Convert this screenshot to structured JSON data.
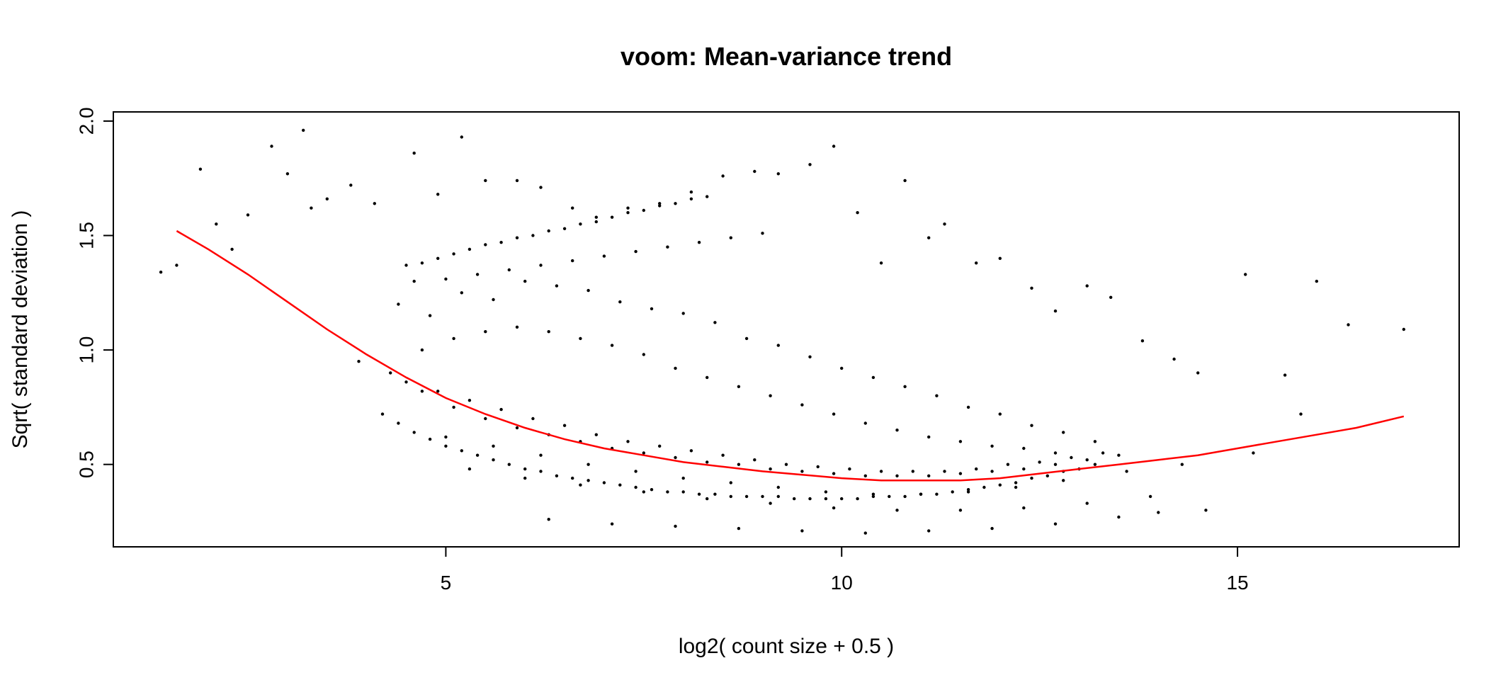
{
  "chart_data": {
    "type": "scatter",
    "title": "voom: Mean-variance trend",
    "xlabel": "log2( count size + 0.5 )",
    "ylabel": "Sqrt( standard deviation )",
    "xlim": [
      0.8,
      17.8
    ],
    "ylim": [
      0.14,
      2.04
    ],
    "x_ticks": [
      5,
      10,
      15
    ],
    "x_tick_labels": [
      "5",
      "10",
      "15"
    ],
    "y_ticks": [
      0.5,
      1.0,
      1.5,
      2.0
    ],
    "y_tick_labels": [
      "0.5",
      "1.0",
      "1.5",
      "2.0"
    ],
    "grid": false,
    "legend": "none",
    "point_color": "#000000",
    "trend_color": "#ff0000",
    "series": [
      {
        "kind": "points",
        "x": [
          1.4,
          1.6,
          1.9,
          2.1,
          2.3,
          2.5,
          2.8,
          3.0,
          3.2,
          3.3,
          3.5,
          3.8,
          4.1,
          4.6,
          4.9,
          5.2,
          5.5,
          5.9,
          6.2,
          6.6,
          6.9,
          7.3,
          7.7,
          8.1,
          8.5,
          8.9,
          9.2,
          9.6,
          9.9,
          10.2,
          10.5,
          10.8,
          11.1,
          11.3,
          11.7,
          12.0,
          12.4,
          12.7,
          13.1,
          13.4,
          13.8,
          14.2,
          14.5,
          15.1,
          15.6,
          16.0,
          16.4,
          17.1,
          4.5,
          4.7,
          4.9,
          5.1,
          5.3,
          5.5,
          5.7,
          5.9,
          6.1,
          6.3,
          6.5,
          6.7,
          6.9,
          7.1,
          7.3,
          7.5,
          7.7,
          7.9,
          8.1,
          8.3,
          4.6,
          5.0,
          5.4,
          5.8,
          6.2,
          6.6,
          7.0,
          7.4,
          7.8,
          8.2,
          8.6,
          9.0,
          4.4,
          4.8,
          5.2,
          5.6,
          6.0,
          6.4,
          6.8,
          7.2,
          7.6,
          8.0,
          8.4,
          8.8,
          9.2,
          9.6,
          10.0,
          10.4,
          10.8,
          11.2,
          11.6,
          12.0,
          12.4,
          12.8,
          13.2,
          4.7,
          5.1,
          5.5,
          5.9,
          6.3,
          6.7,
          7.1,
          7.5,
          7.9,
          8.3,
          8.7,
          9.1,
          9.5,
          9.9,
          10.3,
          10.7,
          11.1,
          11.5,
          11.9,
          12.3,
          12.7,
          4.5,
          4.9,
          5.3,
          5.7,
          6.1,
          6.5,
          6.9,
          7.3,
          7.7,
          8.1,
          8.5,
          8.9,
          9.3,
          9.7,
          10.1,
          10.5,
          10.9,
          11.3,
          11.7,
          12.1,
          12.5,
          12.9,
          13.3,
          5.0,
          5.6,
          6.2,
          6.8,
          7.4,
          8.0,
          8.6,
          9.2,
          9.8,
          10.4,
          11.0,
          11.6,
          12.2,
          12.8,
          13.6,
          14.3,
          15.2,
          5.3,
          6.0,
          6.7,
          7.5,
          8.3,
          9.1,
          9.9,
          10.7,
          11.5,
          12.3,
          13.1,
          13.9,
          4.2,
          4.4,
          4.6,
          4.8,
          5.0,
          5.2,
          5.4,
          5.6,
          5.8,
          6.0,
          6.2,
          6.4,
          6.6,
          6.8,
          7.0,
          7.2,
          7.4,
          7.6,
          7.8,
          8.0,
          8.2,
          8.4,
          8.6,
          8.8,
          9.0,
          9.2,
          9.4,
          9.6,
          9.8,
          10.0,
          10.2,
          10.4,
          10.6,
          10.8,
          11.0,
          11.2,
          11.4,
          11.6,
          11.8,
          12.0,
          12.2,
          12.4,
          12.6,
          12.8,
          13.0,
          13.2,
          3.9,
          4.3,
          4.7,
          5.1,
          5.5,
          5.9,
          6.3,
          6.7,
          7.1,
          7.5,
          7.9,
          8.3,
          8.7,
          9.1,
          9.5,
          9.9,
          10.3,
          10.7,
          11.1,
          11.5,
          11.9,
          12.3,
          12.7,
          13.1,
          13.5,
          6.3,
          7.1,
          7.9,
          8.7,
          9.5,
          10.3,
          11.1,
          11.9,
          12.7,
          13.5,
          14.0,
          14.6,
          15.8
        ],
        "y": [
          1.34,
          1.37,
          1.79,
          1.55,
          1.44,
          1.59,
          1.89,
          1.77,
          1.96,
          1.62,
          1.66,
          1.72,
          1.64,
          1.86,
          1.68,
          1.93,
          1.74,
          1.74,
          1.71,
          1.62,
          1.58,
          1.62,
          1.64,
          1.69,
          1.76,
          1.78,
          1.77,
          1.81,
          1.89,
          1.6,
          1.38,
          1.74,
          1.49,
          1.55,
          1.38,
          1.4,
          1.27,
          1.17,
          1.28,
          1.23,
          1.04,
          0.96,
          0.9,
          1.33,
          0.89,
          1.3,
          1.11,
          1.09,
          1.37,
          1.38,
          1.4,
          1.42,
          1.44,
          1.46,
          1.47,
          1.49,
          1.5,
          1.52,
          1.53,
          1.55,
          1.56,
          1.58,
          1.6,
          1.61,
          1.63,
          1.64,
          1.66,
          1.67,
          1.3,
          1.31,
          1.33,
          1.35,
          1.37,
          1.39,
          1.41,
          1.43,
          1.45,
          1.47,
          1.49,
          1.51,
          1.2,
          1.15,
          1.25,
          1.22,
          1.3,
          1.28,
          1.26,
          1.21,
          1.18,
          1.16,
          1.12,
          1.05,
          1.02,
          0.97,
          0.92,
          0.88,
          0.84,
          0.8,
          0.75,
          0.72,
          0.67,
          0.64,
          0.6,
          1.0,
          1.05,
          1.08,
          1.1,
          1.08,
          1.05,
          1.02,
          0.98,
          0.92,
          0.88,
          0.84,
          0.8,
          0.76,
          0.72,
          0.68,
          0.65,
          0.62,
          0.6,
          0.58,
          0.57,
          0.55,
          0.86,
          0.82,
          0.78,
          0.74,
          0.7,
          0.67,
          0.63,
          0.6,
          0.58,
          0.56,
          0.54,
          0.52,
          0.5,
          0.49,
          0.48,
          0.47,
          0.47,
          0.47,
          0.48,
          0.5,
          0.51,
          0.53,
          0.55,
          0.62,
          0.58,
          0.54,
          0.5,
          0.47,
          0.44,
          0.42,
          0.4,
          0.38,
          0.37,
          0.37,
          0.38,
          0.4,
          0.43,
          0.47,
          0.5,
          0.55,
          0.48,
          0.44,
          0.41,
          0.38,
          0.35,
          0.33,
          0.31,
          0.3,
          0.3,
          0.31,
          0.33,
          0.36,
          0.72,
          0.68,
          0.64,
          0.61,
          0.58,
          0.56,
          0.54,
          0.52,
          0.5,
          0.48,
          0.47,
          0.45,
          0.44,
          0.43,
          0.42,
          0.41,
          0.4,
          0.39,
          0.38,
          0.38,
          0.37,
          0.37,
          0.36,
          0.36,
          0.36,
          0.36,
          0.35,
          0.35,
          0.35,
          0.35,
          0.35,
          0.36,
          0.36,
          0.36,
          0.37,
          0.37,
          0.38,
          0.39,
          0.4,
          0.41,
          0.42,
          0.44,
          0.45,
          0.47,
          0.48,
          0.5,
          0.95,
          0.9,
          0.82,
          0.75,
          0.7,
          0.66,
          0.63,
          0.6,
          0.57,
          0.55,
          0.53,
          0.51,
          0.5,
          0.48,
          0.47,
          0.46,
          0.45,
          0.45,
          0.45,
          0.46,
          0.47,
          0.48,
          0.5,
          0.52,
          0.54,
          0.26,
          0.24,
          0.23,
          0.22,
          0.21,
          0.2,
          0.21,
          0.22,
          0.24,
          0.27,
          0.29,
          0.3,
          0.72
        ]
      },
      {
        "kind": "line",
        "name": "trend",
        "x": [
          1.6,
          2.0,
          2.5,
          3.0,
          3.5,
          4.0,
          4.5,
          5.0,
          5.5,
          6.0,
          6.5,
          7.0,
          7.5,
          8.0,
          8.5,
          9.0,
          9.5,
          10.0,
          10.5,
          11.0,
          11.5,
          12.0,
          12.5,
          13.0,
          13.5,
          14.0,
          14.5,
          15.0,
          15.5,
          16.0,
          16.5,
          17.1
        ],
        "y": [
          1.52,
          1.44,
          1.33,
          1.21,
          1.09,
          0.98,
          0.88,
          0.79,
          0.72,
          0.66,
          0.61,
          0.57,
          0.54,
          0.51,
          0.49,
          0.47,
          0.455,
          0.44,
          0.43,
          0.43,
          0.43,
          0.44,
          0.46,
          0.48,
          0.5,
          0.52,
          0.54,
          0.57,
          0.6,
          0.63,
          0.66,
          0.71
        ]
      }
    ]
  }
}
